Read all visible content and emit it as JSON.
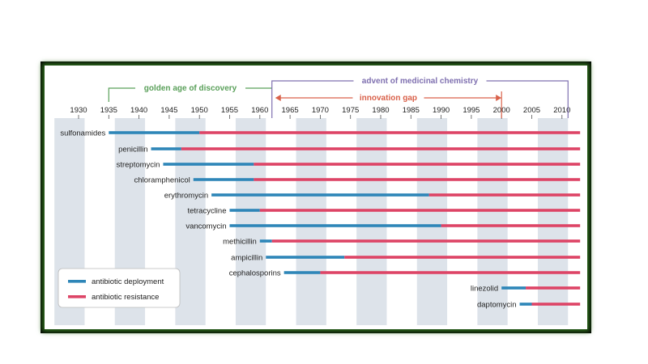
{
  "chart_data": {
    "type": "timeline",
    "x_ticks": [
      1930,
      1935,
      1940,
      1945,
      1950,
      1955,
      1960,
      1965,
      1970,
      1975,
      1980,
      1985,
      1990,
      1995,
      2000,
      2005,
      2010
    ],
    "xlim": [
      1926,
      2013
    ],
    "antibiotics": [
      {
        "name": "sulfonamides",
        "deployment_start": 1935,
        "resistance_start": 1950
      },
      {
        "name": "penicillin",
        "deployment_start": 1942,
        "resistance_start": 1947
      },
      {
        "name": "streptomycin",
        "deployment_start": 1944,
        "resistance_start": 1959
      },
      {
        "name": "chloramphenicol",
        "deployment_start": 1949,
        "resistance_start": 1959
      },
      {
        "name": "erythromycin",
        "deployment_start": 1952,
        "resistance_start": 1988
      },
      {
        "name": "tetracycline",
        "deployment_start": 1955,
        "resistance_start": 1960
      },
      {
        "name": "vancomycin",
        "deployment_start": 1955,
        "resistance_start": 1990
      },
      {
        "name": "methicillin",
        "deployment_start": 1960,
        "resistance_start": 1962
      },
      {
        "name": "ampicillin",
        "deployment_start": 1961,
        "resistance_start": 1974
      },
      {
        "name": "cephalosporins",
        "deployment_start": 1964,
        "resistance_start": 1970
      },
      {
        "name": "linezolid",
        "deployment_start": 2000,
        "resistance_start": 2004
      },
      {
        "name": "daptomycin",
        "deployment_start": 2003,
        "resistance_start": 2005
      }
    ],
    "x_end": 2013,
    "annotations": {
      "golden_age": {
        "label": "golden age of discovery",
        "start": 1935,
        "end": 1962,
        "color": "#5aa05a"
      },
      "medicinal_chemistry": {
        "label": "advent of medicinal chemistry",
        "start": 1962,
        "end": 2011,
        "color": "#7f70b0"
      },
      "innovation_gap": {
        "label": "innovation gap",
        "start": 1962,
        "end": 2000,
        "color": "#d9614a"
      }
    },
    "legend": [
      {
        "label": "antibiotic deployment",
        "color": "#2e86b8"
      },
      {
        "label": "antibiotic resistance",
        "color": "#dd4466"
      }
    ],
    "legend_position": "bottom-left"
  }
}
